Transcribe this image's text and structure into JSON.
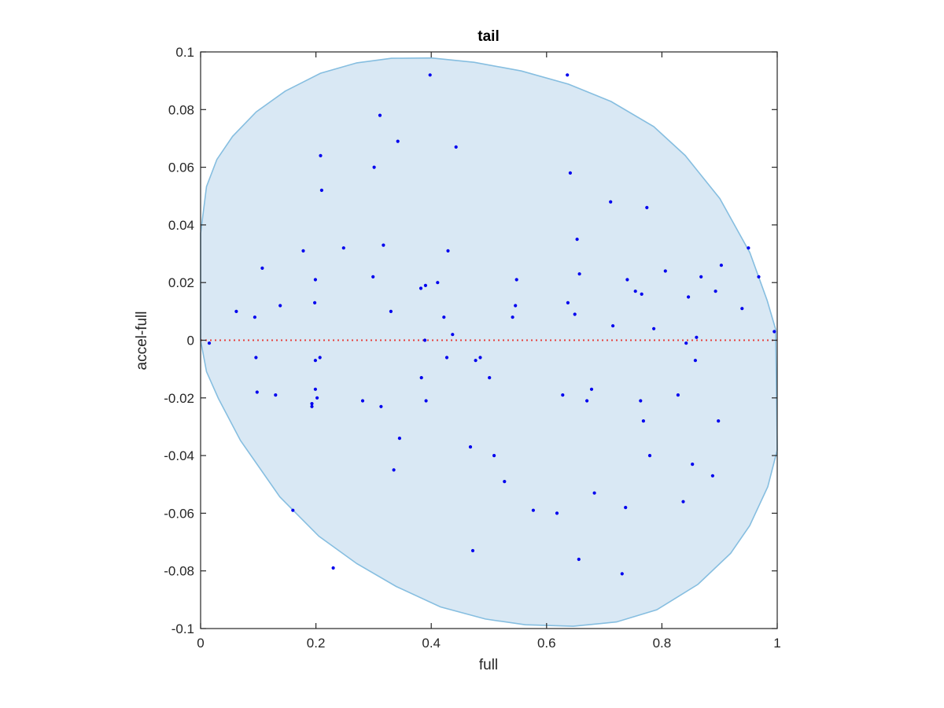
{
  "chart_data": {
    "type": "scatter",
    "title": "tail",
    "xlabel": "full",
    "ylabel": "accel-full",
    "xlim": [
      0,
      1
    ],
    "ylim": [
      -0.1,
      0.1
    ],
    "xticks": [
      0,
      0.2,
      0.4,
      0.6,
      0.8,
      1
    ],
    "xtick_labels": [
      "0",
      "0.2",
      "0.4",
      "0.6",
      "0.8",
      "1"
    ],
    "yticks": [
      -0.1,
      -0.08,
      -0.06,
      -0.04,
      -0.02,
      0,
      0.02,
      0.04,
      0.06,
      0.08,
      0.1
    ],
    "ytick_labels": [
      "-0.1",
      "-0.08",
      "-0.06",
      "-0.04",
      "-0.02",
      "0",
      "0.02",
      "0.04",
      "0.06",
      "0.08",
      "0.1"
    ],
    "grid": false,
    "colors": {
      "points": "#0000ee",
      "ellipse_fill": "#d9e8f4",
      "ellipse_stroke": "#86bee0",
      "zero_line": "#e8413c",
      "axes": "#262626"
    },
    "reference_line": {
      "y": 0,
      "style": "dotted"
    },
    "ellipse": {
      "center": [
        0.4994,
        -0.0005
      ],
      "boundary": [
        [
          0.0,
          0.037
        ],
        [
          0.0103,
          0.0533
        ],
        [
          0.0282,
          0.0627
        ],
        [
          0.0554,
          0.0707
        ],
        [
          0.0964,
          0.0792
        ],
        [
          0.1468,
          0.0864
        ],
        [
          0.2079,
          0.0926
        ],
        [
          0.2709,
          0.0962
        ],
        [
          0.3311,
          0.0978
        ],
        [
          0.4005,
          0.0979
        ],
        [
          0.4743,
          0.0964
        ],
        [
          0.5562,
          0.0934
        ],
        [
          0.6381,
          0.0888
        ],
        [
          0.7119,
          0.0828
        ],
        [
          0.7858,
          0.0741
        ],
        [
          0.8404,
          0.0641
        ],
        [
          0.9006,
          0.0491
        ],
        [
          0.9525,
          0.0304
        ],
        [
          0.9826,
          0.0138
        ],
        [
          0.9973,
          0.0038
        ],
        [
          1.0,
          -0.0381
        ],
        [
          0.9836,
          -0.0508
        ],
        [
          0.9522,
          -0.0643
        ],
        [
          0.9193,
          -0.0739
        ],
        [
          0.8624,
          -0.0847
        ],
        [
          0.7911,
          -0.0935
        ],
        [
          0.7214,
          -0.0977
        ],
        [
          0.6462,
          -0.0992
        ],
        [
          0.5632,
          -0.0987
        ],
        [
          0.4939,
          -0.0967
        ],
        [
          0.4159,
          -0.0925
        ],
        [
          0.3392,
          -0.0854
        ],
        [
          0.2709,
          -0.0775
        ],
        [
          0.2052,
          -0.068
        ],
        [
          0.1373,
          -0.0543
        ],
        [
          0.0691,
          -0.0348
        ],
        [
          0.0309,
          -0.0202
        ],
        [
          0.0103,
          -0.0109
        ],
        [
          0.0,
          0.0
        ]
      ]
    },
    "points": [
      [
        0.015,
        -0.001
      ],
      [
        0.062,
        0.01
      ],
      [
        0.094,
        0.008
      ],
      [
        0.107,
        0.025
      ],
      [
        0.096,
        -0.006
      ],
      [
        0.098,
        -0.018
      ],
      [
        0.13,
        -0.019
      ],
      [
        0.138,
        0.012
      ],
      [
        0.16,
        -0.059
      ],
      [
        0.178,
        0.031
      ],
      [
        0.193,
        -0.022
      ],
      [
        0.193,
        -0.023
      ],
      [
        0.198,
        0.013
      ],
      [
        0.199,
        0.021
      ],
      [
        0.199,
        -0.007
      ],
      [
        0.199,
        -0.017
      ],
      [
        0.202,
        -0.02
      ],
      [
        0.207,
        -0.006
      ],
      [
        0.208,
        0.064
      ],
      [
        0.21,
        0.052
      ],
      [
        0.23,
        -0.079
      ],
      [
        0.248,
        0.032
      ],
      [
        0.281,
        -0.021
      ],
      [
        0.299,
        0.022
      ],
      [
        0.301,
        0.06
      ],
      [
        0.311,
        0.078
      ],
      [
        0.313,
        -0.023
      ],
      [
        0.317,
        0.033
      ],
      [
        0.33,
        0.01
      ],
      [
        0.335,
        -0.045
      ],
      [
        0.342,
        0.069
      ],
      [
        0.345,
        -0.034
      ],
      [
        0.382,
        0.018
      ],
      [
        0.383,
        -0.013
      ],
      [
        0.389,
        0.0
      ],
      [
        0.39,
        0.019
      ],
      [
        0.391,
        -0.021
      ],
      [
        0.398,
        0.092
      ],
      [
        0.411,
        0.02
      ],
      [
        0.422,
        0.008
      ],
      [
        0.427,
        -0.006
      ],
      [
        0.429,
        0.031
      ],
      [
        0.437,
        0.002
      ],
      [
        0.443,
        0.067
      ],
      [
        0.468,
        -0.037
      ],
      [
        0.472,
        -0.073
      ],
      [
        0.477,
        -0.007
      ],
      [
        0.485,
        -0.006
      ],
      [
        0.501,
        -0.013
      ],
      [
        0.509,
        -0.04
      ],
      [
        0.527,
        -0.049
      ],
      [
        0.541,
        0.008
      ],
      [
        0.546,
        0.012
      ],
      [
        0.548,
        0.021
      ],
      [
        0.577,
        -0.059
      ],
      [
        0.618,
        -0.06
      ],
      [
        0.628,
        -0.019
      ],
      [
        0.636,
        0.092
      ],
      [
        0.637,
        0.013
      ],
      [
        0.641,
        0.058
      ],
      [
        0.649,
        0.009
      ],
      [
        0.653,
        0.035
      ],
      [
        0.656,
        -0.076
      ],
      [
        0.657,
        0.023
      ],
      [
        0.67,
        -0.021
      ],
      [
        0.678,
        -0.017
      ],
      [
        0.683,
        -0.053
      ],
      [
        0.711,
        0.048
      ],
      [
        0.715,
        0.005
      ],
      [
        0.731,
        -0.081
      ],
      [
        0.737,
        -0.058
      ],
      [
        0.74,
        0.021
      ],
      [
        0.754,
        0.017
      ],
      [
        0.763,
        -0.021
      ],
      [
        0.765,
        0.016
      ],
      [
        0.768,
        -0.028
      ],
      [
        0.774,
        0.046
      ],
      [
        0.779,
        -0.04
      ],
      [
        0.786,
        0.004
      ],
      [
        0.806,
        0.024
      ],
      [
        0.828,
        -0.019
      ],
      [
        0.837,
        -0.056
      ],
      [
        0.842,
        -0.001
      ],
      [
        0.846,
        0.015
      ],
      [
        0.853,
        -0.043
      ],
      [
        0.858,
        -0.007
      ],
      [
        0.86,
        0.001
      ],
      [
        0.868,
        0.022
      ],
      [
        0.888,
        -0.047
      ],
      [
        0.893,
        0.017
      ],
      [
        0.898,
        -0.028
      ],
      [
        0.903,
        0.026
      ],
      [
        0.939,
        0.011
      ],
      [
        0.95,
        0.032
      ],
      [
        0.968,
        0.022
      ],
      [
        0.995,
        0.003
      ]
    ]
  }
}
